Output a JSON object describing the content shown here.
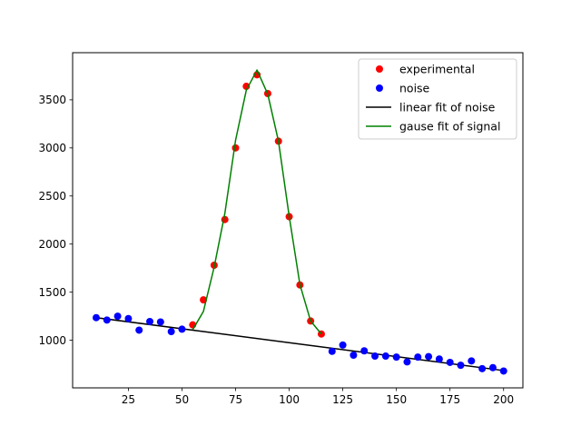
{
  "chart_data": {
    "type": "scatter",
    "title": "",
    "xlabel": "",
    "ylabel": "",
    "xlim": [
      -1,
      209
    ],
    "ylim": [
      505,
      3990
    ],
    "xticks": [
      25,
      50,
      75,
      100,
      125,
      150,
      175,
      200
    ],
    "yticks": [
      1000,
      1500,
      2000,
      2500,
      3000,
      3500
    ],
    "grid": false,
    "legend_position": "top-right",
    "series": [
      {
        "name": "experimental",
        "kind": "points",
        "color": "#ff0000",
        "x": [
          55,
          60,
          65,
          70,
          75,
          80,
          85,
          90,
          95,
          100,
          105,
          110,
          115
        ],
        "y": [
          1160,
          1420,
          1780,
          2255,
          3000,
          3640,
          3760,
          3565,
          3070,
          2285,
          1575,
          1200,
          1065
        ]
      },
      {
        "name": "noise",
        "kind": "points",
        "color": "#0000ff",
        "x": [
          10,
          15,
          20,
          25,
          30,
          35,
          40,
          45,
          50,
          120,
          125,
          130,
          135,
          140,
          145,
          150,
          155,
          160,
          165,
          170,
          175,
          180,
          185,
          190,
          195,
          200
        ],
        "y": [
          1235,
          1210,
          1250,
          1225,
          1105,
          1195,
          1190,
          1090,
          1115,
          885,
          950,
          845,
          890,
          835,
          835,
          825,
          775,
          825,
          830,
          805,
          770,
          740,
          785,
          705,
          715,
          680
        ]
      },
      {
        "name": "linear fit of noise",
        "kind": "line",
        "color": "#000000",
        "x": [
          10,
          200
        ],
        "y": [
          1235,
          685
        ]
      },
      {
        "name": "gause fit of signal",
        "kind": "line",
        "color": "#008000",
        "x": [
          55,
          60,
          65,
          70,
          75,
          80,
          85,
          90,
          95,
          100,
          105,
          110,
          115
        ],
        "y": [
          1110,
          1300,
          1760,
          2320,
          3080,
          3600,
          3810,
          3560,
          3070,
          2290,
          1580,
          1200,
          1065
        ]
      }
    ]
  }
}
